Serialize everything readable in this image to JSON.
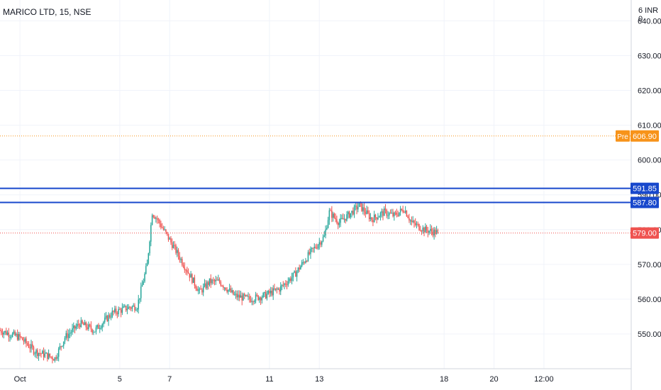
{
  "header": {
    "title": "MARICO LTD, 15, NSE",
    "unit": "6 INR 0"
  },
  "chart_data": {
    "type": "candlestick",
    "ylim": [
      540,
      646
    ],
    "y_ticks": [
      "550.00",
      "560.00",
      "570.00",
      "580.00",
      "590.00",
      "600.00",
      "610.00",
      "620.00",
      "630.00",
      "640.00"
    ],
    "y_tick_values": [
      550,
      560,
      570,
      580,
      590,
      600,
      610,
      620,
      630,
      640
    ],
    "x_ticks": [
      "Oct",
      "5",
      "7",
      "11",
      "13",
      "18",
      "20",
      "12:00"
    ],
    "x_tick_values": [
      1,
      5,
      7,
      11,
      13,
      18,
      20,
      22
    ],
    "x_range": [
      0.2,
      25.5
    ],
    "horizontal_lines": [
      {
        "value": 591.85,
        "label": "591.85",
        "color": "#1848cc",
        "style": "solid"
      },
      {
        "value": 587.8,
        "label": "587.80",
        "color": "#1848cc",
        "style": "solid"
      },
      {
        "value": 606.9,
        "label": "606.90",
        "color": "#f7931a",
        "style": "dotted",
        "badge": "Pre"
      },
      {
        "value": 579.0,
        "label": "579.00",
        "color": "#ef5350",
        "style": "dotted"
      }
    ],
    "price_path": [
      [
        0.2,
        551
      ],
      [
        1.0,
        549
      ],
      [
        1.6,
        545
      ],
      [
        2.4,
        543
      ],
      [
        2.8,
        549
      ],
      [
        3.4,
        553
      ],
      [
        4.0,
        551
      ],
      [
        4.7,
        556
      ],
      [
        5.3,
        557.5
      ],
      [
        5.7,
        558
      ],
      [
        6.1,
        570
      ],
      [
        6.3,
        585
      ],
      [
        6.5,
        583
      ],
      [
        7.0,
        577
      ],
      [
        7.8,
        567
      ],
      [
        8.2,
        562
      ],
      [
        8.6,
        565
      ],
      [
        9.0,
        565
      ],
      [
        9.6,
        561
      ],
      [
        10.2,
        560
      ],
      [
        10.8,
        561
      ],
      [
        11.4,
        563
      ],
      [
        12.0,
        567
      ],
      [
        12.6,
        573
      ],
      [
        13.2,
        578
      ],
      [
        13.4,
        585
      ],
      [
        13.8,
        582
      ],
      [
        14.3,
        585
      ],
      [
        14.6,
        587
      ],
      [
        15.1,
        583
      ],
      [
        15.6,
        585
      ],
      [
        16.0,
        584
      ],
      [
        16.4,
        586
      ],
      [
        16.7,
        582
      ],
      [
        17.2,
        580
      ],
      [
        17.8,
        579
      ]
    ],
    "up_color": "#26a69a",
    "down_color": "#ef5350"
  }
}
